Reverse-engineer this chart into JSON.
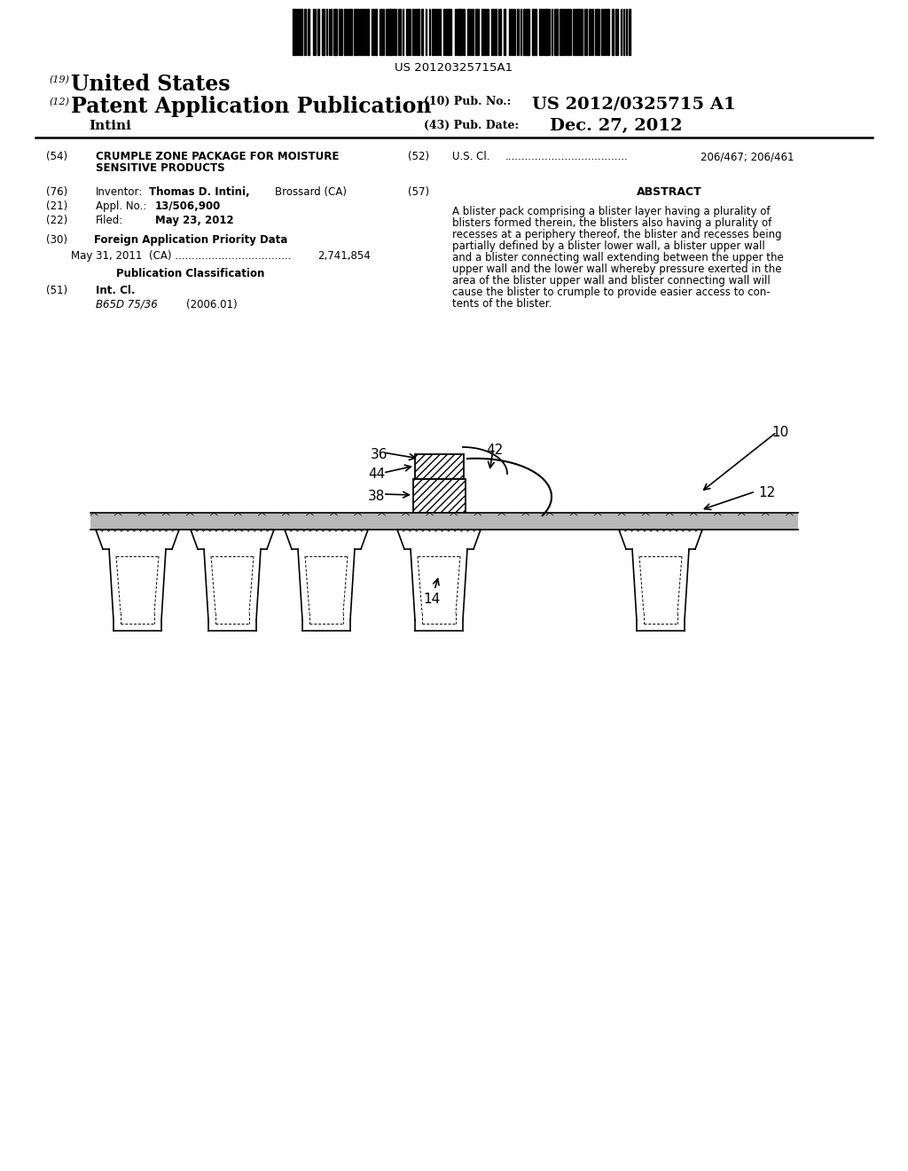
{
  "barcode_text": "US 20120325715A1",
  "title_19": "United States",
  "title_12": "Patent Application Publication",
  "inventor_name": "Intini",
  "pub_no_label": "(10) Pub. No.:",
  "pub_no": "US 2012/0325715 A1",
  "pub_date_label": "(43) Pub. Date:",
  "pub_date": "Dec. 27, 2012",
  "f54_text1": "CRUMPLE ZONE PACKAGE FOR MOISTURE",
  "f54_text2": "SENSITIVE PRODUCTS",
  "f52_dots": "U.S. Cl. .....................................",
  "f52_val": "206/467; 206/461",
  "f76_pre": "Inventor:",
  "f76_bold": "Thomas D. Intini,",
  "f76_rest": " Brossard (CA)",
  "f57_title": "ABSTRACT",
  "abstract": "A blister pack comprising a blister layer having a plurality of\nblisters formed therein, the blisters also having a plurality of\nrecesses at a periphery thereof, the blister and recesses being\npartially defined by a blister lower wall, a blister upper wall\nand a blister connecting wall extending between the upper the\nupper wall and the lower wall whereby pressure exerted in the\narea of the blister upper wall and blister connecting wall will\ncause the blister to crumple to provide easier access to con-\ntents of the blister.",
  "f21": "Appl. No.: 13/506,900",
  "f22_pre": "Filed:",
  "f22_bold": "May 23, 2012",
  "f30_title": "Foreign Application Priority Data",
  "f30_data_pre": "May 31, 2011    (CA) ...................................",
  "f30_data_val": "2,741,854",
  "pub_class": "Publication Classification",
  "f51_title": "Int. Cl.",
  "f51_class": "B65D 75/36",
  "f51_year": "(2006.01)",
  "bg": "#ffffff",
  "fg": "#000000",
  "diag_labels": [
    "36",
    "42",
    "44",
    "38",
    "10",
    "12",
    "14"
  ]
}
